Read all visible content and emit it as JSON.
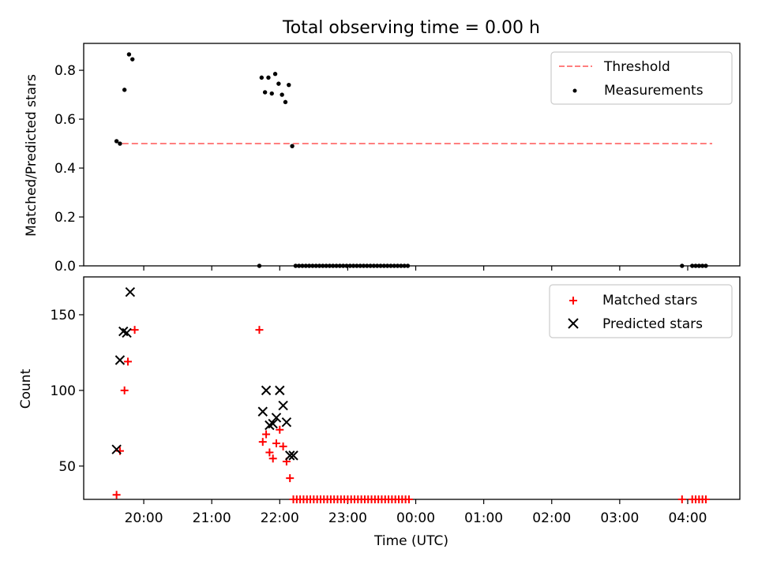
{
  "figure": {
    "title": "Total observing time = 0.00 h",
    "xlabel": "Time (UTC)"
  },
  "colors": {
    "threshold": "#ff7f7f",
    "measurement": "#000000",
    "matched": "#ff0000",
    "predicted": "#000000"
  },
  "chart_data": [
    {
      "type": "line+scatter",
      "ylabel": "Matched/Predicted stars",
      "ylim": [
        0,
        0.91
      ],
      "yticks": [
        0.0,
        0.2,
        0.4,
        0.6,
        0.8
      ],
      "ytick_labels": [
        "0.0",
        "0.2",
        "0.4",
        "0.6",
        "0.8"
      ],
      "xlim": [
        "19:07",
        "04:46"
      ],
      "xticks": [
        "20:00",
        "21:00",
        "22:00",
        "23:00",
        "00:00",
        "01:00",
        "02:00",
        "03:00",
        "04:00"
      ],
      "legend": {
        "position": "upper right",
        "threshold_label": "Threshold",
        "measurements_label": "Measurements"
      },
      "threshold": {
        "name": "Threshold",
        "style": "dashed",
        "x": [
          "19:41",
          "04:46"
        ],
        "y": 0.5
      },
      "series": [
        {
          "name": "Measurements",
          "marker": "dot",
          "points": [
            [
              "19:36",
              0.51
            ],
            [
              "19:39",
              0.5
            ],
            [
              "19:43",
              0.72
            ],
            [
              "19:47",
              0.865
            ],
            [
              "19:50",
              0.845
            ],
            [
              "21:42",
              0.0
            ],
            [
              "21:44",
              0.77
            ],
            [
              "21:47",
              0.71
            ],
            [
              "21:50",
              0.77
            ],
            [
              "21:53",
              0.705
            ],
            [
              "21:56",
              0.785
            ],
            [
              "21:59",
              0.745
            ],
            [
              "22:02",
              0.7
            ],
            [
              "22:05",
              0.67
            ],
            [
              "22:08",
              0.74
            ],
            [
              "22:11",
              0.49
            ],
            [
              "22:14",
              0.0
            ],
            [
              "22:17",
              0.0
            ],
            [
              "22:20",
              0.0
            ],
            [
              "22:23",
              0.0
            ],
            [
              "22:26",
              0.0
            ],
            [
              "22:29",
              0.0
            ],
            [
              "22:32",
              0.0
            ],
            [
              "22:35",
              0.0
            ],
            [
              "22:38",
              0.0
            ],
            [
              "22:41",
              0.0
            ],
            [
              "22:44",
              0.0
            ],
            [
              "22:47",
              0.0
            ],
            [
              "22:50",
              0.0
            ],
            [
              "22:53",
              0.0
            ],
            [
              "22:56",
              0.0
            ],
            [
              "22:59",
              0.0
            ],
            [
              "23:02",
              0.0
            ],
            [
              "23:05",
              0.0
            ],
            [
              "23:08",
              0.0
            ],
            [
              "23:11",
              0.0
            ],
            [
              "23:14",
              0.0
            ],
            [
              "23:17",
              0.0
            ],
            [
              "23:20",
              0.0
            ],
            [
              "23:23",
              0.0
            ],
            [
              "23:26",
              0.0
            ],
            [
              "23:29",
              0.0
            ],
            [
              "23:32",
              0.0
            ],
            [
              "23:35",
              0.0
            ],
            [
              "23:38",
              0.0
            ],
            [
              "23:41",
              0.0
            ],
            [
              "23:44",
              0.0
            ],
            [
              "23:47",
              0.0
            ],
            [
              "23:50",
              0.0
            ],
            [
              "23:53",
              0.0
            ],
            [
              "03:55",
              0.0
            ],
            [
              "04:04",
              0.0
            ],
            [
              "04:07",
              0.0
            ],
            [
              "04:10",
              0.0
            ],
            [
              "04:13",
              0.0
            ],
            [
              "04:16",
              0.0
            ]
          ]
        }
      ]
    },
    {
      "type": "scatter",
      "ylabel": "Count",
      "ylim": [
        28,
        175
      ],
      "yticks": [
        50,
        100,
        150
      ],
      "ytick_labels": [
        "50",
        "100",
        "150"
      ],
      "xlim": [
        "19:07",
        "04:46"
      ],
      "xticks": [
        "20:00",
        "21:00",
        "22:00",
        "23:00",
        "00:00",
        "01:00",
        "02:00",
        "03:00",
        "04:00"
      ],
      "legend": {
        "position": "upper right",
        "matched_label": "Matched stars",
        "predicted_label": "Predicted stars"
      },
      "series": [
        {
          "name": "Matched stars",
          "marker": "plus",
          "points": [
            [
              "19:36",
              31
            ],
            [
              "19:39",
              60
            ],
            [
              "19:43",
              100
            ],
            [
              "19:46",
              119
            ],
            [
              "19:52",
              140
            ],
            [
              "21:42",
              140
            ],
            [
              "21:45",
              66
            ],
            [
              "21:48",
              71
            ],
            [
              "21:51",
              59
            ],
            [
              "21:54",
              55
            ],
            [
              "21:57",
              65
            ],
            [
              "22:00",
              74
            ],
            [
              "22:03",
              63
            ],
            [
              "22:06",
              53
            ],
            [
              "22:09",
              42
            ],
            [
              "22:12",
              28
            ],
            [
              "22:15",
              28
            ],
            [
              "22:18",
              28
            ],
            [
              "22:21",
              28
            ],
            [
              "22:24",
              28
            ],
            [
              "22:27",
              28
            ],
            [
              "22:30",
              28
            ],
            [
              "22:33",
              28
            ],
            [
              "22:36",
              28
            ],
            [
              "22:39",
              28
            ],
            [
              "22:42",
              28
            ],
            [
              "22:45",
              28
            ],
            [
              "22:48",
              28
            ],
            [
              "22:51",
              28
            ],
            [
              "22:54",
              28
            ],
            [
              "22:57",
              28
            ],
            [
              "23:00",
              28
            ],
            [
              "23:03",
              28
            ],
            [
              "23:06",
              28
            ],
            [
              "23:09",
              28
            ],
            [
              "23:12",
              28
            ],
            [
              "23:15",
              28
            ],
            [
              "23:18",
              28
            ],
            [
              "23:21",
              28
            ],
            [
              "23:24",
              28
            ],
            [
              "23:27",
              28
            ],
            [
              "23:30",
              28
            ],
            [
              "23:33",
              28
            ],
            [
              "23:36",
              28
            ],
            [
              "23:39",
              28
            ],
            [
              "23:42",
              28
            ],
            [
              "23:45",
              28
            ],
            [
              "23:48",
              28
            ],
            [
              "23:51",
              28
            ],
            [
              "23:54",
              28
            ],
            [
              "03:55",
              28
            ],
            [
              "04:04",
              28
            ],
            [
              "04:07",
              28
            ],
            [
              "04:10",
              28
            ],
            [
              "04:13",
              28
            ],
            [
              "04:16",
              28
            ]
          ]
        },
        {
          "name": "Predicted stars",
          "marker": "x",
          "points": [
            [
              "19:36",
              61
            ],
            [
              "19:39",
              120
            ],
            [
              "19:42",
              139
            ],
            [
              "19:45",
              138
            ],
            [
              "19:48",
              165
            ],
            [
              "21:45",
              86
            ],
            [
              "21:48",
              100
            ],
            [
              "21:51",
              77
            ],
            [
              "21:54",
              78
            ],
            [
              "21:57",
              82
            ],
            [
              "22:00",
              100
            ],
            [
              "22:03",
              90
            ],
            [
              "22:06",
              79
            ],
            [
              "22:09",
              57
            ],
            [
              "22:12",
              57
            ]
          ]
        }
      ]
    }
  ]
}
